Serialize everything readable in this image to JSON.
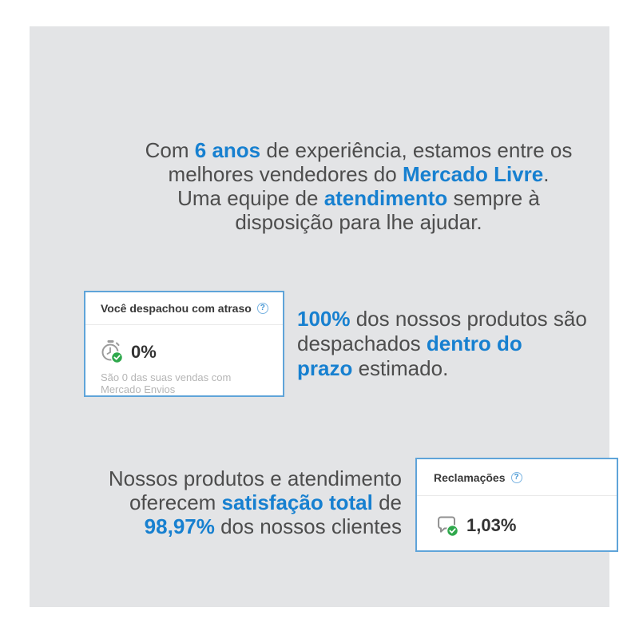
{
  "colors": {
    "accent": "#1780d0",
    "text": "#4d4d4d",
    "panel-bg": "#e3e4e6",
    "card-border": "#5fa4d9",
    "card-title": "#383838",
    "muted": "#b5b5b5",
    "value": "#333333",
    "green": "#2fa84c",
    "divider": "#e9e9e9",
    "help-blue": "#3f93d2",
    "help-border": "#7ab4e2"
  },
  "intro": {
    "segments": [
      {
        "t": "Com "
      },
      {
        "t": "6 anos",
        "b": true
      },
      {
        "t": " de experiência, estamos entre os"
      },
      {
        "br": true
      },
      {
        "t": "melhores vendedores do "
      },
      {
        "t": "Mercado Livre",
        "b": true
      },
      {
        "t": "."
      },
      {
        "br": true
      },
      {
        "t": "Uma equipe de "
      },
      {
        "t": "atendimento",
        "b": true
      },
      {
        "t": " sempre à"
      },
      {
        "br": true
      },
      {
        "t": "disposição para lhe ajudar."
      }
    ]
  },
  "shipping_text": {
    "segments": [
      {
        "t": "100%",
        "b": true
      },
      {
        "t": " dos nossos produtos são"
      },
      {
        "br": true
      },
      {
        "t": "despachados "
      },
      {
        "t": "dentro do",
        "b": true
      },
      {
        "br": true
      },
      {
        "t": "prazo",
        "b": true
      },
      {
        "t": " estimado."
      }
    ]
  },
  "satisfaction_text": {
    "segments": [
      {
        "t": "Nossos produtos e atendimento"
      },
      {
        "br": true
      },
      {
        "t": "oferecem "
      },
      {
        "t": "satisfação total",
        "b": true
      },
      {
        "t": " de"
      },
      {
        "br": true
      },
      {
        "t": "98,97%",
        "b": true
      },
      {
        "t": " dos nossos clientes"
      }
    ]
  },
  "shipping_card": {
    "title": "Você despachou com atraso",
    "help_label": "?",
    "value": "0%",
    "subtitle": "São 0 das suas vendas com Mercado Envios",
    "icon": "stopwatch-check-icon"
  },
  "claims_card": {
    "title": "Reclamações",
    "help_label": "?",
    "value": "1,03%",
    "icon": "chat-bubble-check-icon"
  }
}
